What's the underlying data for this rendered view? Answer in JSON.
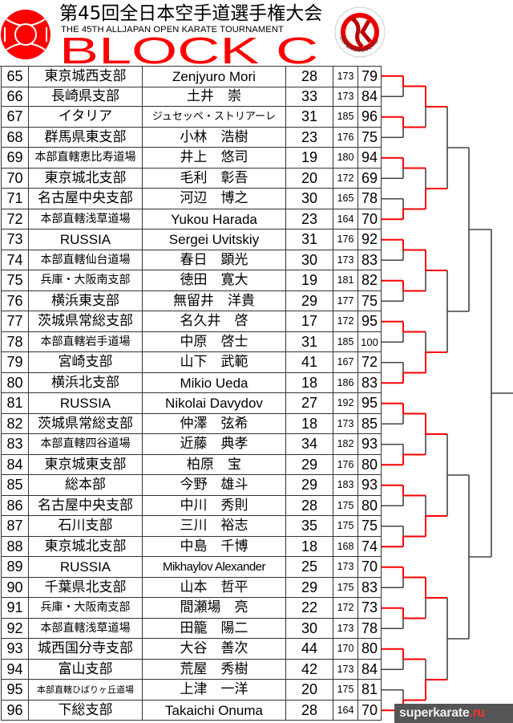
{
  "header": {
    "title_jp": "第45回全日本空手道選手権大会",
    "title_en": "THE 45TH ALLJAPAN OPEN KARATE TOURNAMENT",
    "block": "BLOCK C",
    "right_logo_text": "SUPERKARATE.RU",
    "accent_color": "#ff0000"
  },
  "watermark": {
    "main": "superkarate",
    "tld": ".ru"
  },
  "bracket": {
    "winner_color": "#ff0000",
    "line_color": "#444444",
    "round1_winners": [
      65,
      67,
      69,
      72,
      73,
      75,
      77,
      80,
      81,
      84,
      85,
      88,
      89,
      91,
      93,
      96
    ],
    "round2_winners": [
      65,
      72,
      73,
      80,
      81,
      88,
      89,
      96
    ]
  },
  "competitors": [
    {
      "no": "65",
      "club": "東京城西支部",
      "name": "Zenjyuro Mori",
      "age": "28",
      "height": "173",
      "weight": "79"
    },
    {
      "no": "66",
      "club": "長崎県支部",
      "name": "土井　崇",
      "age": "33",
      "height": "173",
      "weight": "84"
    },
    {
      "no": "67",
      "club": "イタリア",
      "name": "ジュセッペ・ストリアーレ",
      "age": "31",
      "height": "185",
      "weight": "96"
    },
    {
      "no": "68",
      "club": "群馬県東支部",
      "name": "小林　浩樹",
      "age": "23",
      "height": "176",
      "weight": "75"
    },
    {
      "no": "69",
      "club": "本部直轄恵比寿道場",
      "name": "井上　悠司",
      "age": "19",
      "height": "180",
      "weight": "94"
    },
    {
      "no": "70",
      "club": "東京城北支部",
      "name": "毛利　彰吾",
      "age": "20",
      "height": "172",
      "weight": "69"
    },
    {
      "no": "71",
      "club": "名古屋中央支部",
      "name": "河辺　博之",
      "age": "30",
      "height": "165",
      "weight": "78"
    },
    {
      "no": "72",
      "club": "本部直轄浅草道場",
      "name": "Yukou Harada",
      "age": "23",
      "height": "164",
      "weight": "70"
    },
    {
      "no": "73",
      "club": "RUSSIA",
      "name": "Sergei Uvitskiy",
      "age": "31",
      "height": "176",
      "weight": "92"
    },
    {
      "no": "74",
      "club": "本部直轄仙台道場",
      "name": "春日　顕光",
      "age": "30",
      "height": "173",
      "weight": "83"
    },
    {
      "no": "75",
      "club": "兵庫・大阪南支部",
      "name": "徳田　寛大",
      "age": "19",
      "height": "181",
      "weight": "82"
    },
    {
      "no": "76",
      "club": "横浜東支部",
      "name": "無留井　洋貴",
      "age": "29",
      "height": "177",
      "weight": "75"
    },
    {
      "no": "77",
      "club": "茨城県常総支部",
      "name": "名久井　啓",
      "age": "17",
      "height": "172",
      "weight": "95"
    },
    {
      "no": "78",
      "club": "本部直轄岩手道場",
      "name": "中原　啓士",
      "age": "31",
      "height": "185",
      "weight": "100"
    },
    {
      "no": "79",
      "club": "宮崎支部",
      "name": "山下　武範",
      "age": "41",
      "height": "167",
      "weight": "72"
    },
    {
      "no": "80",
      "club": "横浜北支部",
      "name": "Mikio Ueda",
      "age": "18",
      "height": "186",
      "weight": "83"
    },
    {
      "no": "81",
      "club": "RUSSIA",
      "name": "Nikolai Davydov",
      "age": "27",
      "height": "192",
      "weight": "95"
    },
    {
      "no": "82",
      "club": "茨城県常総支部",
      "name": "仲澤　弦希",
      "age": "18",
      "height": "173",
      "weight": "85"
    },
    {
      "no": "83",
      "club": "本部直轄四谷道場",
      "name": "近藤　典孝",
      "age": "34",
      "height": "182",
      "weight": "93"
    },
    {
      "no": "84",
      "club": "東京城東支部",
      "name": "柏原　宝",
      "age": "29",
      "height": "176",
      "weight": "80"
    },
    {
      "no": "85",
      "club": "総本部",
      "name": "今野　雄斗",
      "age": "29",
      "height": "183",
      "weight": "93"
    },
    {
      "no": "86",
      "club": "名古屋中央支部",
      "name": "中川　秀則",
      "age": "28",
      "height": "175",
      "weight": "80"
    },
    {
      "no": "87",
      "club": "石川支部",
      "name": "三川　裕志",
      "age": "35",
      "height": "175",
      "weight": "75"
    },
    {
      "no": "88",
      "club": "東京城北支部",
      "name": "中島　千博",
      "age": "18",
      "height": "168",
      "weight": "74"
    },
    {
      "no": "89",
      "club": "RUSSIA",
      "name": "Mikhaylov Alexander",
      "age": "25",
      "height": "173",
      "weight": "70"
    },
    {
      "no": "90",
      "club": "千葉県北支部",
      "name": "山本　哲平",
      "age": "29",
      "height": "175",
      "weight": "83"
    },
    {
      "no": "91",
      "club": "兵庫・大阪南支部",
      "name": "間瀬場　亮",
      "age": "22",
      "height": "172",
      "weight": "73"
    },
    {
      "no": "92",
      "club": "本部直轄浅草道場",
      "name": "田籠　陽二",
      "age": "30",
      "height": "173",
      "weight": "78"
    },
    {
      "no": "93",
      "club": "城西国分寺支部",
      "name": "大谷　善次",
      "age": "44",
      "height": "170",
      "weight": "80"
    },
    {
      "no": "94",
      "club": "富山支部",
      "name": "荒屋　秀樹",
      "age": "42",
      "height": "173",
      "weight": "84"
    },
    {
      "no": "95",
      "club": "本部直轄ひばりヶ丘道場",
      "name": "上津　一洋",
      "age": "20",
      "height": "175",
      "weight": "81"
    },
    {
      "no": "96",
      "club": "下総支部",
      "name": "Takaichi Onuma",
      "age": "28",
      "height": "164",
      "weight": "70"
    }
  ]
}
